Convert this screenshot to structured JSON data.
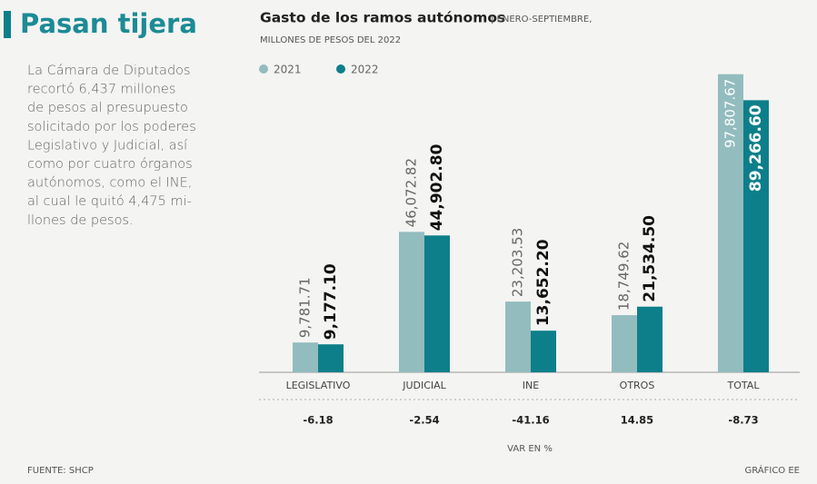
{
  "headline": "Pasan tijera",
  "paragraph": [
    "La Cámara de Diputados",
    "recortó  6,437 millones",
    "de pesos al presupuesto",
    "solicitado por los poderes",
    "Legislativo y Judicial, así",
    "como por cuatro órganos",
    "autónomos, como el INE,",
    "al cual le quitó 4,475 mi-",
    "llones de pesos."
  ],
  "source": "FUENTE: SHCP",
  "credit": "GRÁFICO EE",
  "chart_data": {
    "type": "bar",
    "title": "Gasto de los ramos autónomos",
    "subtitle": "| ENERO-SEPTIEMBRE,",
    "subtitle2": "MILLONES DE PESOS DEL 2022",
    "categories": [
      "LEGISLATIVO",
      "JUDICIAL",
      "INE",
      "OTROS",
      "TOTAL"
    ],
    "series": [
      {
        "name": "2021",
        "color": "#93bcbf",
        "values": [
          9781.71,
          46072.82,
          23203.53,
          18749.62,
          97807.67
        ],
        "value_labels": [
          "9,781.71",
          "46,072.82",
          "23,203.53",
          "18,749.62",
          "97,807.67"
        ]
      },
      {
        "name": "2022",
        "color": "#0d7f8a",
        "values": [
          9177.1,
          44902.8,
          13652.2,
          21534.5,
          89266.6
        ],
        "value_labels": [
          "9,177.10",
          "44,902.80",
          "13,652.20",
          "21,534.50",
          "89,266.60"
        ]
      }
    ],
    "variation": {
      "label": "VAR EN %",
      "values": [
        -6.18,
        -2.54,
        -41.16,
        14.85,
        -8.73
      ]
    }
  }
}
